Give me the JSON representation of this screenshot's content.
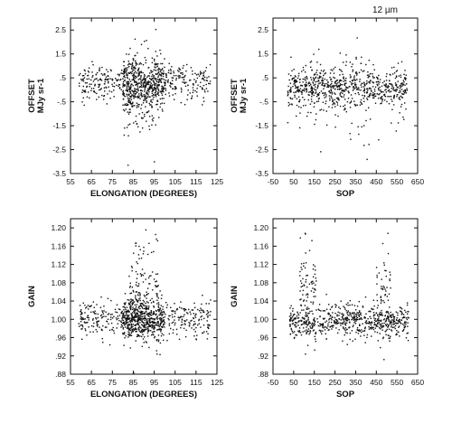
{
  "corner_label": "12 µm",
  "chart_data": [
    {
      "type": "scatter",
      "xlabel": "ELONGATION (DEGREES)",
      "ylabel": [
        "OFFSET",
        "MJy sr-1"
      ],
      "xlim": [
        55,
        125
      ],
      "ylim": [
        -3.5,
        3.0
      ],
      "xticks": [
        55,
        65,
        75,
        85,
        95,
        105,
        115,
        125
      ],
      "xtick_labels": [
        "55",
        "65",
        "75",
        "85",
        "95",
        "105",
        "115",
        "125"
      ],
      "yticks": [
        2.5,
        1.5,
        0.5,
        -0.5,
        -1.5,
        -2.5,
        -3.5
      ],
      "ytick_labels": [
        "2.5",
        "1.5",
        ".5",
        "-.5",
        "-1.5",
        "-2.5",
        "-3.5"
      ],
      "grid": false,
      "point_clusters": [
        {
          "x_range": [
            59,
            122
          ],
          "y_center": 0.3,
          "y_spread": 0.35,
          "count": 450
        },
        {
          "x_range": [
            80,
            100
          ],
          "y_center": 0.1,
          "y_spread": 0.6,
          "count": 400
        },
        {
          "x_range": [
            82,
            96
          ],
          "y_center": 0.0,
          "y_spread": 1.3,
          "count": 90
        }
      ]
    },
    {
      "type": "scatter",
      "xlabel": "SOP",
      "ylabel": [
        "OFFSET",
        "MJy sr-1"
      ],
      "xlim": [
        -50,
        650
      ],
      "ylim": [
        -3.5,
        3.0
      ],
      "xticks": [
        -50,
        50,
        150,
        250,
        350,
        450,
        550,
        650
      ],
      "xtick_labels": [
        "-50",
        "50",
        "150",
        "250",
        "350",
        "450",
        "550",
        "650"
      ],
      "yticks": [
        2.5,
        1.5,
        0.5,
        -0.5,
        -1.5,
        -2.5,
        -3.5
      ],
      "ytick_labels": [
        "2.5",
        "1.5",
        ".5",
        "-.5",
        "-1.5",
        "-2.5",
        "-3.5"
      ],
      "grid": false,
      "point_clusters": [
        {
          "x_range": [
            20,
            600
          ],
          "y_center": 0.1,
          "y_spread": 0.4,
          "count": 650
        },
        {
          "x_range": [
            20,
            600
          ],
          "y_center": -0.2,
          "y_spread": 0.9,
          "count": 150
        }
      ]
    },
    {
      "type": "scatter",
      "xlabel": "ELONGATION (DEGREES)",
      "ylabel": [
        "GAIN"
      ],
      "xlim": [
        55,
        125
      ],
      "ylim": [
        0.88,
        1.22
      ],
      "xticks": [
        55,
        65,
        75,
        85,
        95,
        105,
        115,
        125
      ],
      "xtick_labels": [
        "55",
        "65",
        "75",
        "85",
        "95",
        "105",
        "115",
        "125"
      ],
      "yticks": [
        1.2,
        1.16,
        1.12,
        1.08,
        1.04,
        1.0,
        0.96,
        0.92,
        0.88
      ],
      "ytick_labels": [
        "1.20",
        "1.16",
        "1.12",
        "1.08",
        "1.04",
        "1.00",
        ".96",
        ".92",
        ".88"
      ],
      "grid": false,
      "point_clusters": [
        {
          "x_range": [
            59,
            122
          ],
          "y_center": 1.0,
          "y_spread": 0.02,
          "count": 450
        },
        {
          "x_range": [
            80,
            100
          ],
          "y_center": 1.0,
          "y_spread": 0.025,
          "count": 450
        },
        {
          "x_range": [
            83,
            97
          ],
          "y_center": 1.07,
          "y_spread": 0.06,
          "count": 110
        }
      ]
    },
    {
      "type": "scatter",
      "xlabel": "SOP",
      "ylabel": [
        "GAIN"
      ],
      "xlim": [
        -50,
        650
      ],
      "ylim": [
        0.88,
        1.22
      ],
      "xticks": [
        -50,
        50,
        150,
        250,
        350,
        450,
        550,
        650
      ],
      "xtick_labels": [
        "-50",
        "50",
        "150",
        "250",
        "350",
        "450",
        "550",
        "650"
      ],
      "yticks": [
        1.2,
        1.16,
        1.12,
        1.08,
        1.04,
        1.0,
        0.96,
        0.92,
        0.88
      ],
      "ytick_labels": [
        "1.20",
        "1.16",
        "1.12",
        "1.08",
        "1.04",
        "1.00",
        ".96",
        ".92",
        ".88"
      ],
      "grid": false,
      "point_clusters": [
        {
          "x_range": [
            30,
            610
          ],
          "y_center": 0.995,
          "y_spread": 0.018,
          "count": 650
        },
        {
          "x_range": [
            80,
            160
          ],
          "y_center": 1.06,
          "y_spread": 0.05,
          "count": 90
        },
        {
          "x_range": [
            450,
            520
          ],
          "y_center": 1.05,
          "y_spread": 0.05,
          "count": 70
        }
      ]
    }
  ]
}
